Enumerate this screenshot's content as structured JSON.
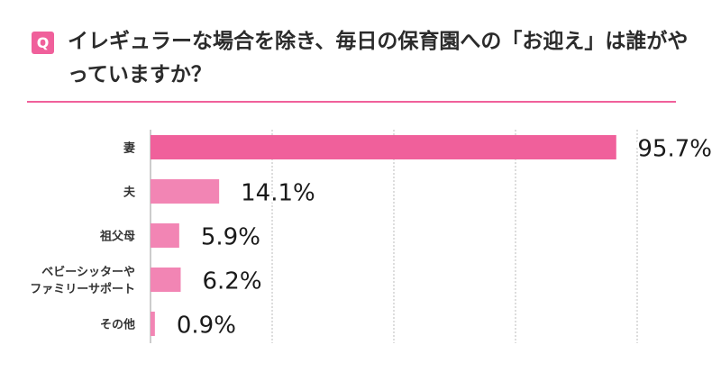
{
  "question": {
    "badge": "Q",
    "text": "イレギュラーな場合を除き、毎日の保育園への「お迎え」は誰がやっていますか？"
  },
  "colors": {
    "accent": "#f0609b",
    "bar_primary": "#f0609b",
    "bar_secondary": "#f285b4",
    "grid": "#bbbbbb"
  },
  "chart_data": {
    "type": "bar",
    "orientation": "horizontal",
    "categories": [
      "妻",
      "夫",
      "祖父母",
      "ベビーシッターや\nファミリーサポート",
      "その他"
    ],
    "values": [
      95.7,
      14.1,
      5.9,
      6.2,
      0.9
    ],
    "value_labels": [
      "95.7%",
      "14.1%",
      "5.9%",
      "6.2%",
      "0.9%"
    ],
    "xlim": [
      0,
      100
    ],
    "grid": true,
    "legend": "none"
  }
}
